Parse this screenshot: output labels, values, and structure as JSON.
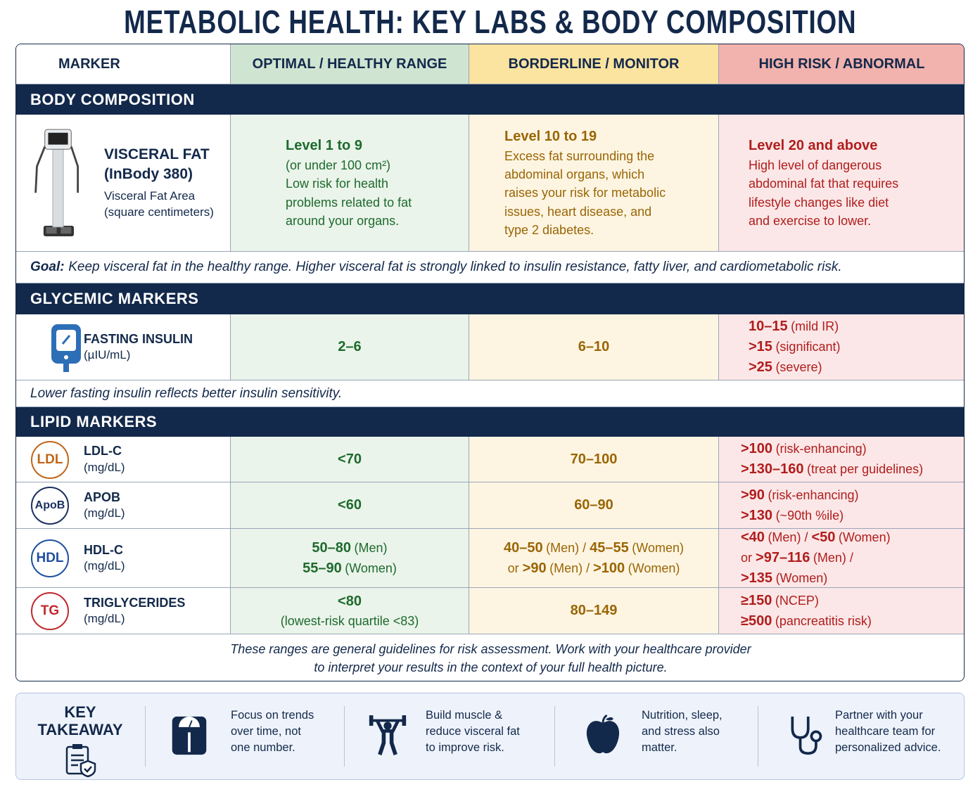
{
  "title": "METABOLIC HEALTH: KEY LABS & BODY COMPOSITION",
  "table": {
    "headers": [
      "MARKER",
      "OPTIMAL / HEALTHY RANGE",
      "BORDERLINE / MONITOR",
      "HIGH RISK / ABNORMAL"
    ],
    "sections": [
      {
        "title": "BODY COMPOSITION",
        "rows": [
          {
            "marker": {
              "name": [
                "VISCERAL FAT",
                "(InBody 380)"
              ],
              "unit": [
                "Visceral Fat Area",
                "(square centimeters)"
              ]
            },
            "cells": [
              [
                [
                  {
                    "strong": "Level 1 to 9"
                  }
                ],
                "(or under 100 cm²)",
                "Low risk for health",
                "problems related to fat",
                "around your organs."
              ],
              [
                [
                  {
                    "strong": "Level 10 to 19"
                  }
                ],
                "Excess fat surrounding the",
                "abdominal organs, which",
                "raises your risk for metabolic",
                "issues, heart disease, and",
                "type 2 diabetes."
              ],
              [
                [
                  {
                    "strong": "Level 20 and above"
                  }
                ],
                "High level of dangerous",
                "abdominal fat that requires",
                "lifestyle changes like diet",
                "and exercise to lower."
              ]
            ]
          }
        ],
        "note": {
          "label": "Goal:",
          "text": "Keep visceral fat in the healthy range. Higher visceral fat is strongly linked to insulin resistance, fatty liver, and cardiometabolic risk."
        }
      },
      {
        "title": "GLYCEMIC MARKERS",
        "rows": [
          {
            "marker": {
              "name": [
                "FASTING INSULIN"
              ],
              "unit": [
                "(µIU/mL)"
              ]
            },
            "cells": [
              [
                [
                  {
                    "strong": "2–6"
                  }
                ]
              ],
              [
                [
                  {
                    "strong": "6–10"
                  }
                ]
              ],
              [
                [
                  {
                    "strong": "10–15"
                  },
                  {
                    "text": "(mild IR)"
                  }
                ],
                [
                  {
                    "strong": ">15"
                  },
                  {
                    "text": "(significant)"
                  }
                ],
                [
                  {
                    "strong": ">25"
                  },
                  {
                    "text": "(severe)"
                  }
                ]
              ]
            ]
          }
        ],
        "note": {
          "text": "Lower fasting insulin reflects better insulin sensitivity."
        }
      },
      {
        "title": "LIPID MARKERS",
        "rows": [
          {
            "marker": {
              "badge": "LDL",
              "badge_color": "#c0651a",
              "name": [
                "LDL-C"
              ],
              "unit": [
                "(mg/dL)"
              ]
            },
            "cells": [
              [
                [
                  {
                    "strong": "<70"
                  }
                ]
              ],
              [
                [
                  {
                    "strong": "70–100"
                  }
                ]
              ],
              [
                [
                  {
                    "strong": ">100"
                  },
                  {
                    "text": "(risk-enhancing)"
                  }
                ],
                [
                  {
                    "strong": ">130–160"
                  },
                  {
                    "text": "(treat per guidelines)"
                  }
                ]
              ]
            ]
          },
          {
            "marker": {
              "badge": "ApoB",
              "badge_color": "#1b2f5e",
              "name": [
                "APOB"
              ],
              "unit": [
                "(mg/dL)"
              ]
            },
            "cells": [
              [
                [
                  {
                    "strong": "<60"
                  }
                ]
              ],
              [
                [
                  {
                    "strong": "60–90"
                  }
                ]
              ],
              [
                [
                  {
                    "strong": ">90"
                  },
                  {
                    "text": "(risk-enhancing)"
                  }
                ],
                [
                  {
                    "strong": ">130"
                  },
                  {
                    "text": "(~90th %ile)"
                  }
                ]
              ]
            ]
          },
          {
            "marker": {
              "badge": "HDL",
              "badge_color": "#1f4fa0",
              "name": [
                "HDL-C"
              ],
              "unit": [
                "(mg/dL)"
              ]
            },
            "cells": [
              [
                [
                  {
                    "strong": "50–80"
                  },
                  {
                    "text": "(Men)"
                  }
                ],
                [
                  {
                    "strong": "55–90"
                  },
                  {
                    "text": "(Women)"
                  }
                ]
              ],
              [
                [
                  {
                    "strong": "40–50"
                  },
                  {
                    "text": "(Men) /"
                  },
                  {
                    "strong": "45–55"
                  },
                  {
                    "text": "(Women)"
                  }
                ],
                [
                  {
                    "text": "or"
                  },
                  {
                    "strong": ">90"
                  },
                  {
                    "text": "(Men) /"
                  },
                  {
                    "strong": ">100"
                  },
                  {
                    "text": "(Women)"
                  }
                ]
              ],
              [
                [
                  {
                    "strong": "<40"
                  },
                  {
                    "text": "(Men) /"
                  },
                  {
                    "strong": "<50"
                  },
                  {
                    "text": "(Women)"
                  }
                ],
                [
                  {
                    "text": "or"
                  },
                  {
                    "strong": ">97–116"
                  },
                  {
                    "text": "(Men) /"
                  }
                ],
                [
                  {
                    "strong": ">135"
                  },
                  {
                    "text": "(Women)"
                  }
                ]
              ]
            ]
          },
          {
            "marker": {
              "badge": "TG",
              "badge_color": "#c0282d",
              "name": [
                "TRIGLYCERIDES"
              ],
              "unit": [
                "(mg/dL)"
              ]
            },
            "cells": [
              [
                [
                  {
                    "strong": "<80"
                  }
                ],
                "(lowest-risk quartile <83)"
              ],
              [
                [
                  {
                    "strong": "80–149"
                  }
                ]
              ],
              [
                [
                  {
                    "strong": "≥150"
                  },
                  {
                    "text": "(NCEP)"
                  }
                ],
                [
                  {
                    "strong": "≥500"
                  },
                  {
                    "text": "(pancreatitis risk)"
                  }
                ]
              ]
            ]
          }
        ]
      }
    ],
    "footer": [
      "These ranges are general guidelines for risk assessment. Work with your healthcare provider",
      "to interpret your results in the context of your full health picture."
    ]
  },
  "takeaway": {
    "title": [
      "KEY",
      "TAKEAWAY"
    ],
    "items": [
      [
        "Focus on trends",
        "over time, not",
        "one number."
      ],
      [
        "Build muscle &",
        "reduce visceral fat",
        "to improve risk."
      ],
      [
        "Nutrition, sleep,",
        "and stress also",
        "matter."
      ],
      [
        "Partner with your",
        "healthcare team for",
        "personalized advice."
      ]
    ]
  }
}
